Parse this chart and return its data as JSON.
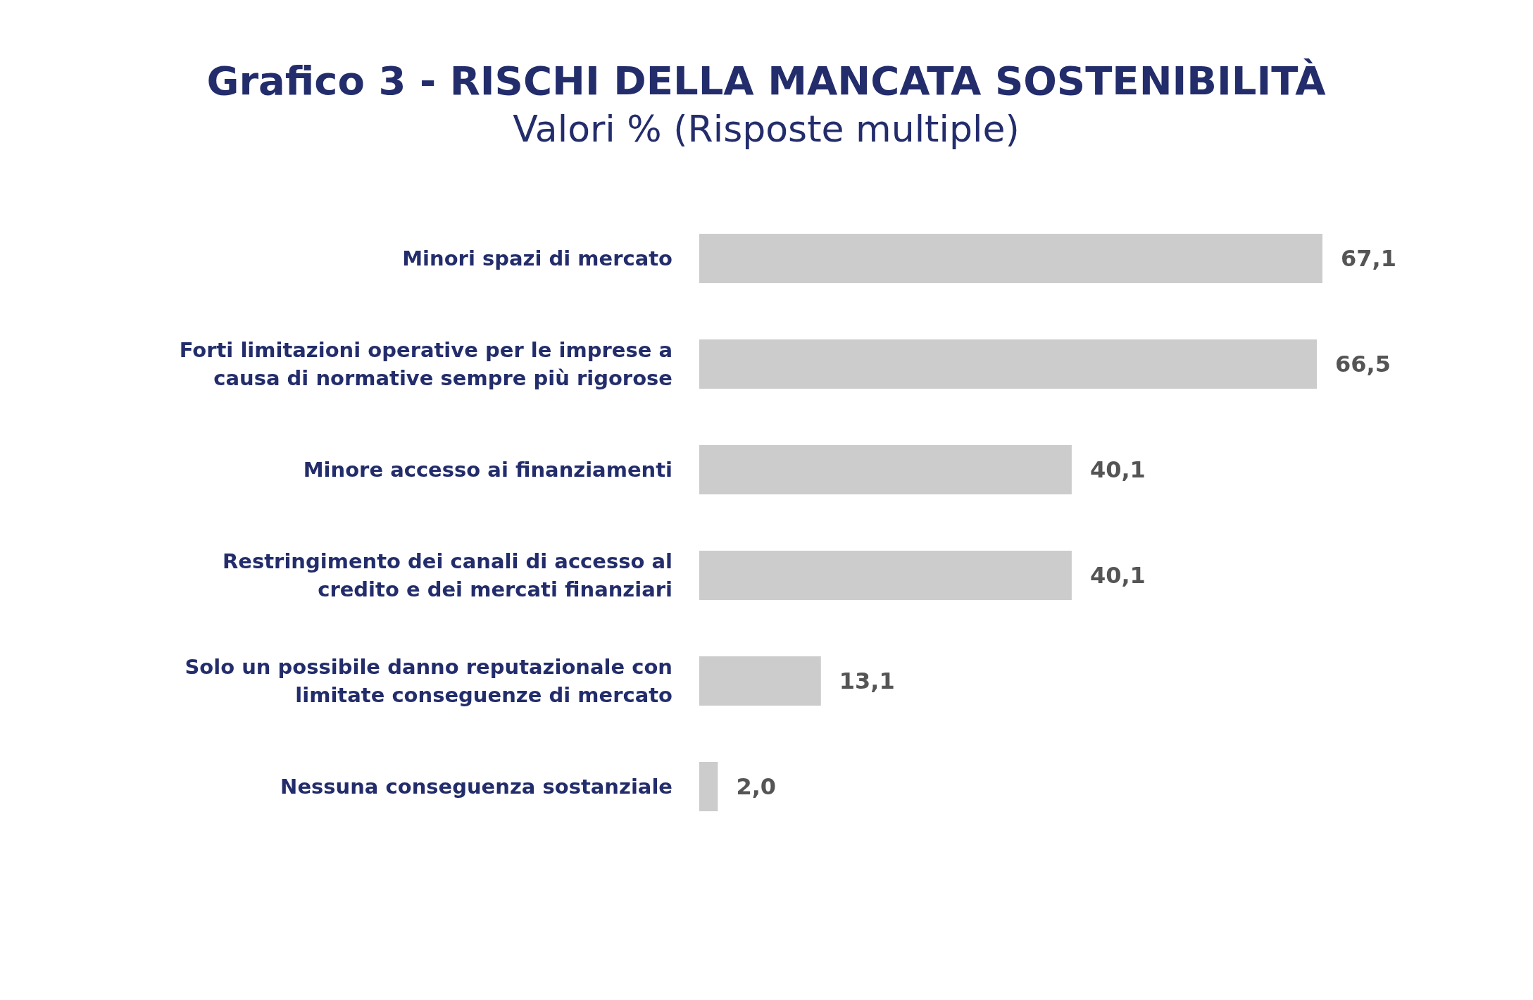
{
  "chart_data": {
    "type": "bar",
    "orientation": "horizontal",
    "title": "Grafico 3 - RISCHI DELLA MANCATA SOSTENIBILITÀ",
    "subtitle": "Valori % (Risposte multiple)",
    "categories": [
      "Minori spazi di mercato",
      "Forti limitazioni operative per le imprese a causa di normative sempre più rigorose",
      "Minore accesso ai finanziamenti",
      "Restringimento dei canali di accesso al credito e dei mercati finanziari",
      "Solo un possibile danno reputazionale con limitate conseguenze di mercato",
      "Nessuna conseguenza sostanziale"
    ],
    "values": [
      67.1,
      66.5,
      40.1,
      40.1,
      13.1,
      2.0
    ],
    "value_labels": [
      "67,1",
      "66,5",
      "40,1",
      "40,1",
      "13,1",
      "2,0"
    ],
    "color": "#cccccc"
  }
}
